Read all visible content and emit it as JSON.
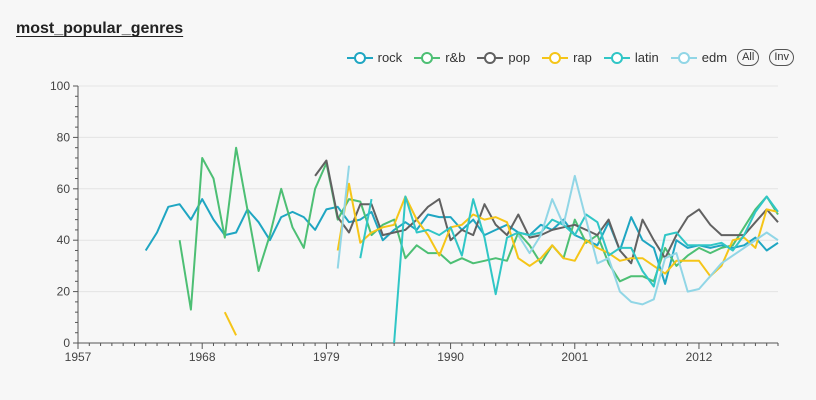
{
  "chart_data": {
    "type": "line",
    "title": "most_popular_genres",
    "xlabel": "",
    "ylabel": "",
    "xlim": [
      1957,
      2019
    ],
    "ylim": [
      0,
      100
    ],
    "x_ticks": [
      1957,
      1968,
      1979,
      1990,
      2001,
      2012
    ],
    "y_ticks": [
      0,
      20,
      40,
      60,
      80,
      100
    ],
    "legend_position": "top-right",
    "series": [
      {
        "name": "rock",
        "color": "#1fa6c2",
        "points": [
          [
            1963,
            36
          ],
          [
            1964,
            43
          ],
          [
            1965,
            53
          ],
          [
            1966,
            54
          ],
          [
            1967,
            48
          ],
          [
            1968,
            56
          ],
          [
            1969,
            48
          ],
          [
            1970,
            42
          ],
          [
            1971,
            43
          ],
          [
            1972,
            52
          ],
          [
            1973,
            47
          ],
          [
            1974,
            40
          ],
          [
            1975,
            49
          ],
          [
            1976,
            51
          ],
          [
            1977,
            49
          ],
          [
            1978,
            44
          ],
          [
            1979,
            52
          ],
          [
            1980,
            53
          ],
          [
            1981,
            47
          ],
          [
            1982,
            48
          ],
          [
            1983,
            51
          ],
          [
            1984,
            40
          ],
          [
            1985,
            44
          ],
          [
            1986,
            47
          ],
          [
            1987,
            44
          ],
          [
            1988,
            50
          ],
          [
            1989,
            49
          ],
          [
            1990,
            49
          ],
          [
            1991,
            44
          ],
          [
            1992,
            48
          ],
          [
            1993,
            42
          ],
          [
            1994,
            44
          ],
          [
            1995,
            46
          ],
          [
            1996,
            43
          ],
          [
            1997,
            42
          ],
          [
            1998,
            46
          ],
          [
            1999,
            44
          ],
          [
            2000,
            48
          ],
          [
            2001,
            42
          ],
          [
            2002,
            40
          ],
          [
            2003,
            38
          ],
          [
            2004,
            47
          ],
          [
            2005,
            36
          ],
          [
            2006,
            49
          ],
          [
            2007,
            40
          ],
          [
            2008,
            37
          ],
          [
            2009,
            23
          ],
          [
            2010,
            40
          ],
          [
            2011,
            37
          ],
          [
            2012,
            38
          ],
          [
            2013,
            37
          ],
          [
            2014,
            38
          ],
          [
            2015,
            37
          ],
          [
            2016,
            38
          ],
          [
            2017,
            41
          ],
          [
            2018,
            36
          ],
          [
            2019,
            39
          ]
        ]
      },
      {
        "name": "r&b",
        "color": "#4dbf74",
        "points": [
          [
            1966,
            40
          ],
          [
            1967,
            13
          ],
          [
            1968,
            72
          ],
          [
            1969,
            64
          ],
          [
            1970,
            41
          ],
          [
            1971,
            76
          ],
          [
            1972,
            52
          ],
          [
            1973,
            28
          ],
          [
            1974,
            42
          ],
          [
            1975,
            60
          ],
          [
            1976,
            45
          ],
          [
            1977,
            37
          ],
          [
            1978,
            60
          ],
          [
            1979,
            70
          ],
          [
            1980,
            48
          ],
          [
            1981,
            56
          ],
          [
            1982,
            55
          ],
          [
            1983,
            42
          ],
          [
            1984,
            46
          ],
          [
            1985,
            48
          ],
          [
            1986,
            33
          ],
          [
            1987,
            38
          ],
          [
            1988,
            35
          ],
          [
            1989,
            35
          ],
          [
            1990,
            31
          ],
          [
            1991,
            33
          ],
          [
            1992,
            31
          ],
          [
            1993,
            32
          ],
          [
            1994,
            33
          ],
          [
            1995,
            32
          ],
          [
            1996,
            43
          ],
          [
            1997,
            38
          ],
          [
            1998,
            31
          ],
          [
            1999,
            38
          ],
          [
            2000,
            33
          ],
          [
            2001,
            48
          ],
          [
            2002,
            39
          ],
          [
            2003,
            42
          ],
          [
            2004,
            31
          ],
          [
            2005,
            24
          ],
          [
            2006,
            26
          ],
          [
            2007,
            26
          ],
          [
            2008,
            24
          ],
          [
            2009,
            37
          ],
          [
            2010,
            30
          ],
          [
            2011,
            34
          ],
          [
            2012,
            37
          ],
          [
            2013,
            35
          ],
          [
            2014,
            37
          ],
          [
            2015,
            38
          ],
          [
            2016,
            45
          ],
          [
            2017,
            52
          ],
          [
            2018,
            57
          ],
          [
            2019,
            50
          ]
        ]
      },
      {
        "name": "pop",
        "color": "#616161",
        "points": [
          [
            1978,
            65
          ],
          [
            1979,
            71
          ],
          [
            1980,
            49
          ],
          [
            1981,
            43
          ],
          [
            1982,
            54
          ],
          [
            1983,
            54
          ],
          [
            1984,
            42
          ],
          [
            1985,
            43
          ],
          [
            1986,
            44
          ],
          [
            1987,
            48
          ],
          [
            1988,
            53
          ],
          [
            1989,
            56
          ],
          [
            1990,
            40
          ],
          [
            1991,
            44
          ],
          [
            1992,
            42
          ],
          [
            1993,
            54
          ],
          [
            1994,
            46
          ],
          [
            1995,
            42
          ],
          [
            1996,
            50
          ],
          [
            1997,
            41
          ],
          [
            1998,
            42
          ],
          [
            1999,
            44
          ],
          [
            2000,
            45
          ],
          [
            2001,
            46
          ],
          [
            2002,
            44
          ],
          [
            2003,
            42
          ],
          [
            2004,
            48
          ],
          [
            2005,
            36
          ],
          [
            2006,
            31
          ],
          [
            2007,
            48
          ],
          [
            2008,
            40
          ],
          [
            2009,
            33
          ],
          [
            2010,
            42
          ],
          [
            2011,
            49
          ],
          [
            2012,
            52
          ],
          [
            2013,
            46
          ],
          [
            2014,
            42
          ],
          [
            2015,
            42
          ],
          [
            2016,
            42
          ],
          [
            2017,
            47
          ],
          [
            2018,
            52
          ],
          [
            2019,
            47
          ]
        ]
      },
      {
        "name": "rap",
        "color": "#f5c518",
        "points": [
          [
            1970,
            12
          ],
          [
            1971,
            3
          ],
          [
            null,
            null
          ],
          [
            1980,
            36
          ],
          [
            1981,
            62
          ],
          [
            1982,
            39
          ],
          [
            1983,
            43
          ],
          [
            1984,
            45
          ],
          [
            1985,
            46
          ],
          [
            1986,
            57
          ],
          [
            1987,
            48
          ],
          [
            1988,
            42
          ],
          [
            1989,
            34
          ],
          [
            1990,
            45
          ],
          [
            1991,
            46
          ],
          [
            1992,
            50
          ],
          [
            1993,
            48
          ],
          [
            1994,
            49
          ],
          [
            1995,
            47
          ],
          [
            1996,
            33
          ],
          [
            1997,
            30
          ],
          [
            1998,
            33
          ],
          [
            1999,
            38
          ],
          [
            2000,
            33
          ],
          [
            2001,
            32
          ],
          [
            2002,
            40
          ],
          [
            2003,
            37
          ],
          [
            2004,
            35
          ],
          [
            2005,
            32
          ],
          [
            2006,
            33
          ],
          [
            2007,
            33
          ],
          [
            2008,
            30
          ],
          [
            2009,
            27
          ],
          [
            2010,
            32
          ],
          [
            2011,
            32
          ],
          [
            2012,
            32
          ],
          [
            2013,
            26
          ],
          [
            2014,
            30
          ],
          [
            2015,
            40
          ],
          [
            2016,
            41
          ],
          [
            2017,
            37
          ],
          [
            2018,
            52
          ],
          [
            2019,
            51
          ]
        ]
      },
      {
        "name": "latin",
        "color": "#30c6c6",
        "points": [
          [
            1982,
            33
          ],
          [
            1983,
            56
          ],
          [
            null,
            null
          ],
          [
            1985,
            0
          ],
          [
            1986,
            57
          ],
          [
            1987,
            43
          ],
          [
            1988,
            44
          ],
          [
            1989,
            42
          ],
          [
            1990,
            45
          ],
          [
            1991,
            34
          ],
          [
            1992,
            56
          ],
          [
            1993,
            41
          ],
          [
            1994,
            19
          ],
          [
            1995,
            41
          ],
          [
            1996,
            43
          ],
          [
            1997,
            42
          ],
          [
            1998,
            43
          ],
          [
            1999,
            48
          ],
          [
            2000,
            46
          ],
          [
            2001,
            42
          ],
          [
            2002,
            50
          ],
          [
            2003,
            47
          ],
          [
            2004,
            34
          ],
          [
            2005,
            37
          ],
          [
            2006,
            37
          ],
          [
            2007,
            28
          ],
          [
            2008,
            22
          ],
          [
            2009,
            42
          ],
          [
            2010,
            43
          ],
          [
            2011,
            38
          ],
          [
            2012,
            38
          ],
          [
            2013,
            38
          ],
          [
            2014,
            39
          ],
          [
            2015,
            36
          ],
          [
            2016,
            42
          ],
          [
            2017,
            51
          ],
          [
            2018,
            57
          ],
          [
            2019,
            51
          ]
        ]
      },
      {
        "name": "edm",
        "color": "#91d6e6",
        "points": [
          [
            1980,
            29
          ],
          [
            1981,
            69
          ],
          [
            null,
            null
          ],
          [
            1996,
            42
          ],
          [
            1997,
            35
          ],
          [
            1998,
            42
          ],
          [
            1999,
            56
          ],
          [
            2000,
            46
          ],
          [
            2001,
            65
          ],
          [
            2002,
            48
          ],
          [
            2003,
            31
          ],
          [
            2004,
            33
          ],
          [
            2005,
            20
          ],
          [
            2006,
            16
          ],
          [
            2007,
            15
          ],
          [
            2008,
            17
          ],
          [
            2009,
            33
          ],
          [
            2010,
            35
          ],
          [
            2011,
            20
          ],
          [
            2012,
            21
          ],
          [
            2013,
            26
          ],
          [
            2014,
            31
          ],
          [
            2015,
            34
          ],
          [
            2016,
            37
          ],
          [
            2017,
            40
          ],
          [
            2018,
            43
          ],
          [
            2019,
            40
          ]
        ]
      }
    ]
  },
  "legend": {
    "all_label": "All",
    "inv_label": "Inv"
  }
}
